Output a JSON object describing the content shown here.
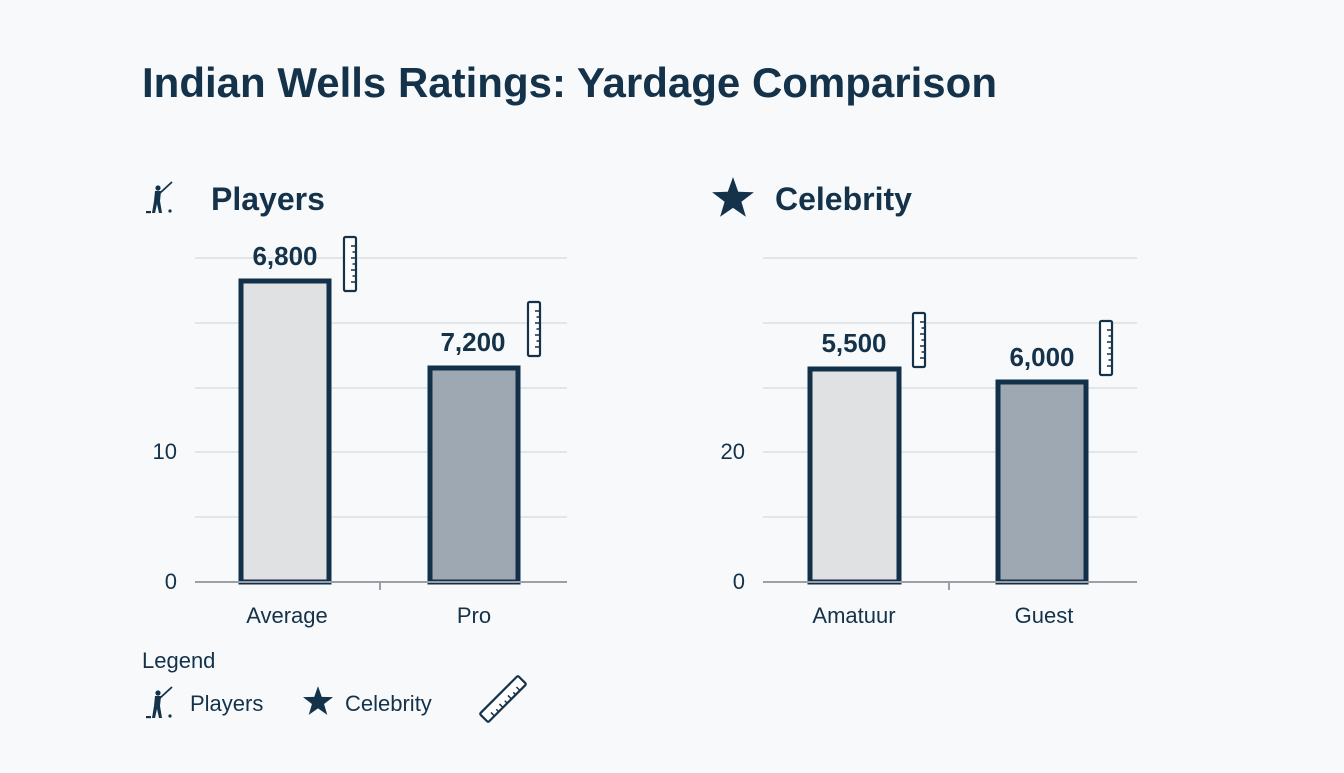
{
  "title": "Indian Wells Ratings: Yardage Comparison",
  "colors": {
    "text": "#14324a",
    "bar_outline": "#12304a",
    "bar_light": "#dfe1e3",
    "bar_dark": "#9ea8b2",
    "grid": "#dcdfe2",
    "axis": "#9aa0a6"
  },
  "chart_data": [
    {
      "type": "bar",
      "panel_title": "Players",
      "icon": "golfer-icon",
      "categories": [
        "Average",
        "Pro"
      ],
      "values": [
        6800,
        7200
      ],
      "value_labels": [
        "6,800",
        "7,200"
      ],
      "value_label_icon": "ruler-icon",
      "y_tick_labels": [
        "0",
        "10"
      ],
      "grid": true
    },
    {
      "type": "bar",
      "panel_title": "Celebrity",
      "icon": "star-icon",
      "categories": [
        "Amatuur",
        "Guest"
      ],
      "values": [
        5500,
        6000
      ],
      "value_labels": [
        "5,500",
        "6,000"
      ],
      "value_label_icon": "ruler-icon",
      "y_tick_labels": [
        "0",
        "20"
      ],
      "grid": true
    }
  ],
  "legend": {
    "title": "Legend",
    "items": [
      {
        "label": "Players",
        "icon": "golfer-icon"
      },
      {
        "label": "Celebrity",
        "icon": "star-icon"
      },
      {
        "label": "",
        "icon": "ruler-icon"
      }
    ]
  }
}
